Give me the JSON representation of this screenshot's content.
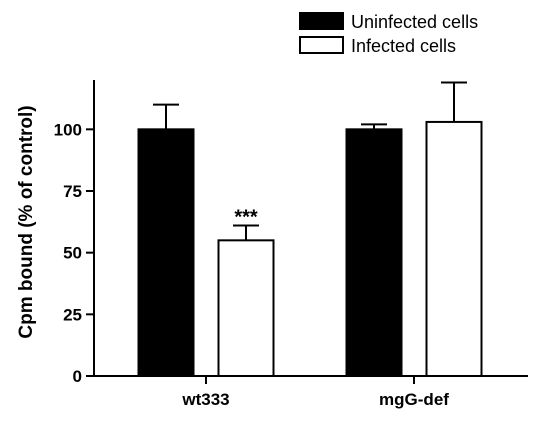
{
  "chart_data": {
    "type": "bar",
    "categories": [
      "wt333",
      "mgG-def"
    ],
    "series": [
      {
        "name": "Uninfected cells",
        "values": [
          100,
          100
        ],
        "errors": [
          10,
          2
        ],
        "fill": "#000000"
      },
      {
        "name": "Infected cells",
        "values": [
          55,
          103
        ],
        "errors": [
          6,
          16
        ],
        "fill": "#ffffff"
      }
    ],
    "ylabel": "Cpm bound (% of control)",
    "ylim": [
      0,
      120
    ],
    "yticks": [
      0,
      25,
      50,
      75,
      100
    ],
    "grid": false,
    "legend_position": "top-right",
    "annotations": [
      {
        "text": "***",
        "category": "wt333",
        "series": "Infected cells"
      }
    ]
  }
}
